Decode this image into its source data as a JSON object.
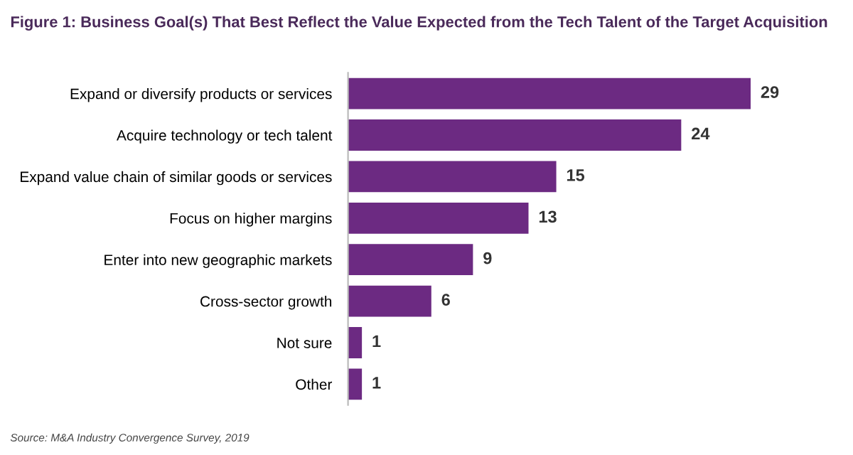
{
  "chart_data": {
    "type": "bar",
    "orientation": "horizontal",
    "title": "Figure 1: Business Goal(s) That Best Reflect the Value Expected from the Tech Talent of the Target Acquisition",
    "categories": [
      "Expand or diversify products or services",
      "Acquire technology or tech talent",
      "Expand value chain of similar goods or services",
      "Focus on higher margins",
      "Enter into new geographic markets",
      "Cross-sector growth",
      "Not sure",
      "Other"
    ],
    "values": [
      29,
      24,
      15,
      13,
      9,
      6,
      1,
      1
    ],
    "color": "#6c2a82",
    "data_labels": true,
    "grid": false,
    "annotations": [
      "Source: M&A Industry Convergence Survey, 2019"
    ]
  }
}
